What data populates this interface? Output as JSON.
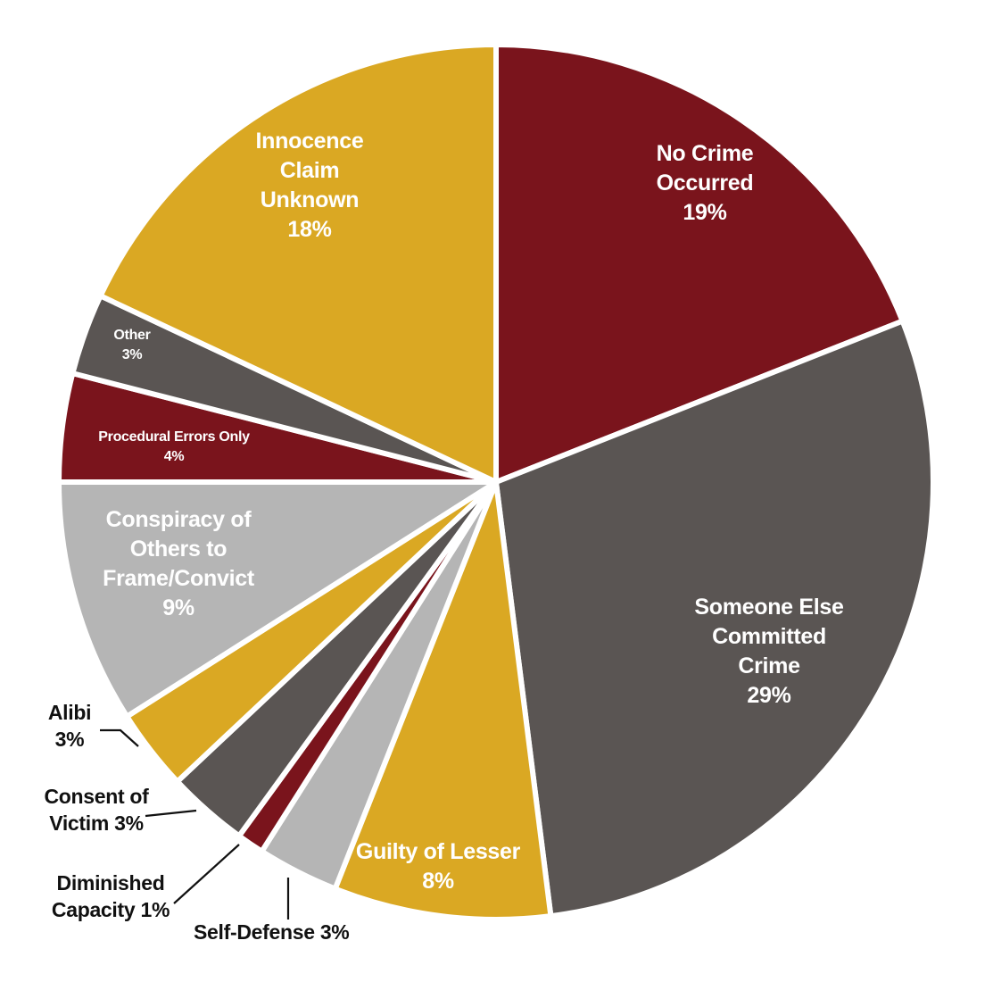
{
  "chart_data": {
    "type": "pie",
    "title": "",
    "start_angle_deg": 0,
    "direction": "clockwise",
    "slices": [
      {
        "name": "No Crime Occurred",
        "value": 19,
        "value_label": "19%",
        "color": "#7a141c",
        "label_lines": [
          "No Crime",
          "Occurred",
          "19%"
        ],
        "label_placement": "inside",
        "label_color": "#ffffff"
      },
      {
        "name": "Someone Else Committed Crime",
        "value": 29,
        "value_label": "29%",
        "color": "#5a5553",
        "label_lines": [
          "Someone Else",
          "Committed",
          "Crime",
          "29%"
        ],
        "label_placement": "inside",
        "label_color": "#ffffff"
      },
      {
        "name": "Guilty of Lesser",
        "value": 8,
        "value_label": "8%",
        "color": "#daa823",
        "label_lines": [
          "Guilty of Lesser",
          "8%"
        ],
        "label_placement": "inside",
        "label_color": "#ffffff"
      },
      {
        "name": "Self-Defense",
        "value": 3,
        "value_label": "3%",
        "color": "#b5b5b5",
        "label_lines": [
          "Self-Defense 3%"
        ],
        "label_placement": "outside",
        "label_color": "#111111"
      },
      {
        "name": "Diminished Capacity",
        "value": 1,
        "value_label": "1%",
        "color": "#7a141c",
        "label_lines": [
          "Diminished",
          "Capacity 1%"
        ],
        "label_placement": "outside",
        "label_color": "#111111"
      },
      {
        "name": "Consent of Victim",
        "value": 3,
        "value_label": "3%",
        "color": "#5a5553",
        "label_lines": [
          "Consent of",
          "Victim 3%"
        ],
        "label_placement": "outside",
        "label_color": "#111111"
      },
      {
        "name": "Alibi",
        "value": 3,
        "value_label": "3%",
        "color": "#daa823",
        "label_lines": [
          "Alibi",
          "3%"
        ],
        "label_placement": "outside",
        "label_color": "#111111"
      },
      {
        "name": "Conspiracy of Others to Frame/Convict",
        "value": 9,
        "value_label": "9%",
        "color": "#b5b5b5",
        "label_lines": [
          "Conspiracy of",
          "Others to",
          "Frame/Convict",
          "9%"
        ],
        "label_placement": "inside",
        "label_color": "#ffffff"
      },
      {
        "name": "Procedural Errors Only",
        "value": 4,
        "value_label": "4%",
        "color": "#7a141c",
        "label_lines": [
          "Procedural Errors Only",
          "4%"
        ],
        "label_placement": "inside",
        "label_color": "#ffffff"
      },
      {
        "name": "Other",
        "value": 3,
        "value_label": "3%",
        "color": "#5a5553",
        "label_lines": [
          "Other",
          "3%"
        ],
        "label_placement": "inside",
        "label_color": "#ffffff"
      },
      {
        "name": "Innocence Claim Unknown",
        "value": 18,
        "value_label": "18%",
        "color": "#daa823",
        "label_lines": [
          "Innocence",
          "Claim",
          "Unknown",
          "18%"
        ],
        "label_placement": "inside",
        "label_color": "#ffffff"
      }
    ]
  }
}
